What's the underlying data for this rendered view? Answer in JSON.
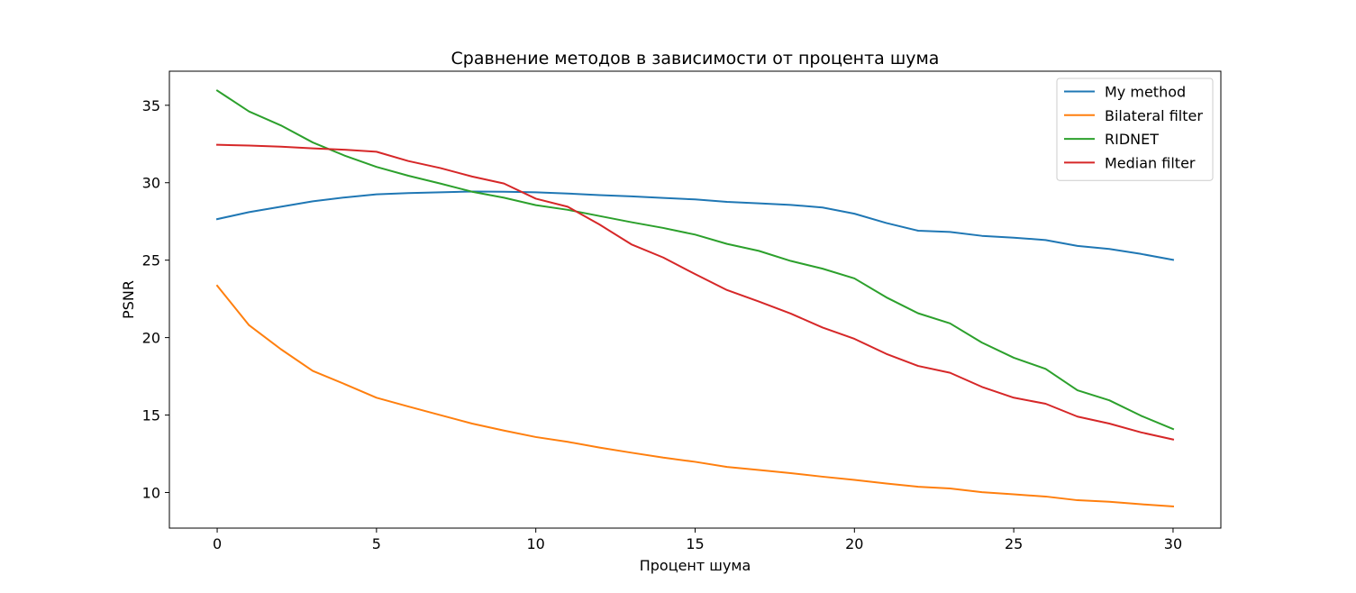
{
  "chart_data": {
    "type": "line",
    "title": "Сравнение методов в зависимости от процента шума",
    "xlabel": "Процент шума",
    "ylabel": "PSNR",
    "xlim": [
      -1.5,
      31.5
    ],
    "ylim": [
      7.7,
      37.2
    ],
    "xticks": [
      0,
      5,
      10,
      15,
      20,
      25,
      30
    ],
    "yticks": [
      10,
      15,
      20,
      25,
      30,
      35
    ],
    "grid": false,
    "legend_position": "top-right",
    "x": [
      0,
      1,
      2,
      3,
      4,
      5,
      6,
      7,
      8,
      9,
      10,
      11,
      12,
      13,
      14,
      15,
      16,
      17,
      18,
      19,
      20,
      21,
      22,
      23,
      24,
      25,
      26,
      27,
      28,
      29,
      30
    ],
    "series": [
      {
        "name": "My method",
        "color": "#1f77b4",
        "values": [
          27.65,
          28.1,
          28.45,
          28.8,
          29.05,
          29.25,
          29.33,
          29.38,
          29.43,
          29.42,
          29.38,
          29.3,
          29.2,
          29.12,
          29.02,
          28.92,
          28.76,
          28.67,
          28.57,
          28.4,
          28.0,
          27.4,
          26.9,
          26.82,
          26.57,
          26.45,
          26.3,
          25.92,
          25.72,
          25.4,
          25.02
        ]
      },
      {
        "name": "Bilateral filter",
        "color": "#ff7f0e",
        "values": [
          23.35,
          20.8,
          19.25,
          17.85,
          17.0,
          16.12,
          15.55,
          15.0,
          14.45,
          14.0,
          13.58,
          13.27,
          12.9,
          12.57,
          12.25,
          11.98,
          11.65,
          11.45,
          11.25,
          11.02,
          10.81,
          10.58,
          10.37,
          10.26,
          10.02,
          9.88,
          9.74,
          9.5,
          9.4,
          9.24,
          9.1
        ]
      },
      {
        "name": "RIDNET",
        "color": "#2ca02c",
        "values": [
          35.95,
          34.6,
          33.7,
          32.6,
          31.75,
          31.02,
          30.45,
          29.95,
          29.42,
          29.03,
          28.55,
          28.25,
          27.85,
          27.45,
          27.08,
          26.65,
          26.05,
          25.6,
          24.95,
          24.45,
          23.82,
          22.6,
          21.57,
          20.92,
          19.68,
          18.7,
          17.98,
          16.6,
          15.95,
          14.95,
          14.1
        ]
      },
      {
        "name": "Median filter",
        "color": "#d62728",
        "values": [
          32.45,
          32.4,
          32.33,
          32.22,
          32.13,
          32.0,
          31.4,
          30.95,
          30.4,
          29.95,
          28.97,
          28.45,
          27.3,
          26.02,
          25.17,
          24.1,
          23.07,
          22.33,
          21.55,
          20.65,
          19.92,
          18.95,
          18.17,
          17.73,
          16.82,
          16.12,
          15.73,
          14.9,
          14.45,
          13.88,
          13.42
        ]
      }
    ]
  }
}
